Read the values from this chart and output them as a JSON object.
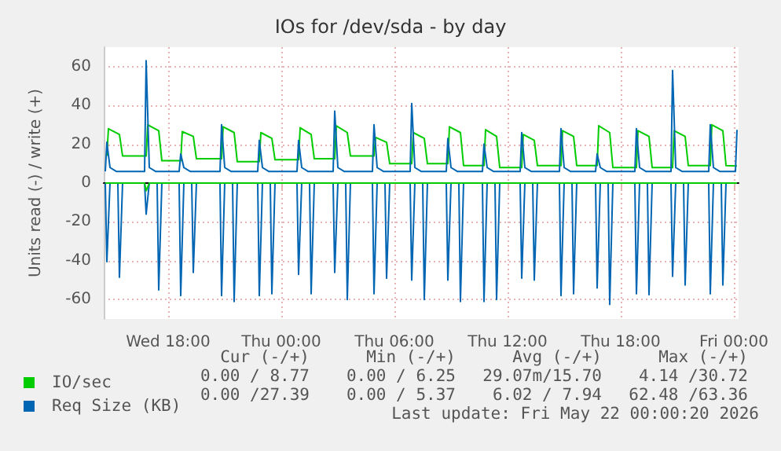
{
  "chart_data": {
    "type": "line",
    "title": "IOs for /dev/sda - by day",
    "ylabel": "Units read (-) / write (+)",
    "xlim": [
      "2026-05-20T14:35",
      "2026-05-22T00:15"
    ],
    "xticks": [
      {
        "value": "2026-05-20T18:00",
        "label": "Wed 18:00"
      },
      {
        "value": "2026-05-21T00:00",
        "label": "Thu 00:00"
      },
      {
        "value": "2026-05-21T06:00",
        "label": "Thu 06:00"
      },
      {
        "value": "2026-05-21T12:00",
        "label": "Thu 12:00"
      },
      {
        "value": "2026-05-21T18:00",
        "label": "Thu 18:00"
      },
      {
        "value": "2026-05-22T00:00",
        "label": "Fri 00:00"
      }
    ],
    "ylim": [
      -70,
      70
    ],
    "yticks": [
      -60,
      -40,
      -20,
      0,
      20,
      40,
      60
    ],
    "grid": true,
    "legend": "bottom left",
    "annotations": [
      "Cur (-/+)",
      "Min (-/+)",
      "Avg (-/+)",
      "Max (-/+)",
      "0.00 / 8.77",
      "0.00 / 6.25",
      "29.07m/15.70",
      "4.14 /30.72",
      "0.00 /27.39",
      "0.00 / 5.37",
      "6.02 / 7.94",
      "62.48 /63.36",
      "Last update: Fri May 22 00:00:20 2026"
    ],
    "series": [
      {
        "name": "IO/sec",
        "color": "#00cc00",
        "x": [
          "2026-05-20T14:45",
          "2026-05-20T14:50",
          "2026-05-20T15:25",
          "2026-05-20T15:35",
          "2026-05-20T16:50",
          "2026-05-20T16:55",
          "2026-05-20T17:30",
          "2026-05-20T17:40",
          "2026-05-20T18:40",
          "2026-05-20T18:45",
          "2026-05-20T19:20",
          "2026-05-20T19:30",
          "2026-05-20T20:50",
          "2026-05-20T20:55",
          "2026-05-20T21:30",
          "2026-05-20T21:40",
          "2026-05-20T22:50",
          "2026-05-20T22:55",
          "2026-05-20T23:30",
          "2026-05-20T23:40",
          "2026-05-21T00:55",
          "2026-05-21T01:00",
          "2026-05-21T01:35",
          "2026-05-21T01:45",
          "2026-05-21T02:50",
          "2026-05-21T02:55",
          "2026-05-21T03:30",
          "2026-05-21T03:40",
          "2026-05-21T04:55",
          "2026-05-21T05:00",
          "2026-05-21T05:35",
          "2026-05-21T05:45",
          "2026-05-21T06:55",
          "2026-05-21T07:00",
          "2026-05-21T07:35",
          "2026-05-21T07:45",
          "2026-05-21T08:50",
          "2026-05-21T08:55",
          "2026-05-21T09:30",
          "2026-05-21T09:40",
          "2026-05-21T10:45",
          "2026-05-21T10:50",
          "2026-05-21T11:25",
          "2026-05-21T11:35",
          "2026-05-21T12:45",
          "2026-05-21T12:50",
          "2026-05-21T13:25",
          "2026-05-21T13:35",
          "2026-05-21T14:50",
          "2026-05-21T14:55",
          "2026-05-21T15:30",
          "2026-05-21T15:40",
          "2026-05-21T16:45",
          "2026-05-21T16:50",
          "2026-05-21T17:25",
          "2026-05-21T17:35",
          "2026-05-21T18:50",
          "2026-05-21T18:55",
          "2026-05-21T19:30",
          "2026-05-21T19:40",
          "2026-05-21T20:45",
          "2026-05-21T20:50",
          "2026-05-21T21:25",
          "2026-05-21T21:35",
          "2026-05-21T22:45",
          "2026-05-21T22:50",
          "2026-05-21T23:25",
          "2026-05-21T23:35",
          "2026-05-22T00:10"
        ],
        "values": [
          14,
          28,
          25,
          14,
          14,
          30,
          27,
          11.5,
          11.5,
          26.5,
          24,
          12.5,
          12.5,
          29,
          26,
          11,
          11,
          26,
          23,
          12,
          12,
          28.5,
          25,
          12.5,
          12.5,
          29.5,
          26,
          14,
          14,
          23.5,
          21,
          10,
          10,
          26,
          23,
          10,
          10,
          29,
          26,
          9,
          9,
          27.5,
          24,
          8,
          8,
          25,
          22,
          9,
          9,
          27,
          24,
          9,
          9,
          29.5,
          26,
          8,
          8,
          27,
          24,
          8,
          8,
          27,
          24,
          9,
          9,
          30,
          27,
          9,
          8.77
        ]
      },
      {
        "name": "Req Size (KB)",
        "color": "#0066b3",
        "x": [
          "2026-05-20T14:40",
          "2026-05-20T14:45",
          "2026-05-20T14:55",
          "2026-05-20T15:15",
          "2026-05-20T16:45",
          "2026-05-20T16:50",
          "2026-05-20T17:00",
          "2026-05-20T17:20",
          "2026-05-20T18:35",
          "2026-05-20T18:40",
          "2026-05-20T18:50",
          "2026-05-20T19:10",
          "2026-05-20T20:45",
          "2026-05-20T20:50",
          "2026-05-20T21:00",
          "2026-05-20T21:20",
          "2026-05-20T22:45",
          "2026-05-20T22:50",
          "2026-05-20T23:00",
          "2026-05-20T23:20",
          "2026-05-21T00:50",
          "2026-05-21T00:55",
          "2026-05-21T01:05",
          "2026-05-21T01:25",
          "2026-05-21T02:45",
          "2026-05-21T02:50",
          "2026-05-21T03:00",
          "2026-05-21T03:20",
          "2026-05-21T04:50",
          "2026-05-21T04:55",
          "2026-05-21T05:05",
          "2026-05-21T05:25",
          "2026-05-21T06:50",
          "2026-05-21T06:55",
          "2026-05-21T07:05",
          "2026-05-21T07:25",
          "2026-05-21T08:45",
          "2026-05-21T08:50",
          "2026-05-21T09:00",
          "2026-05-21T09:20",
          "2026-05-21T10:40",
          "2026-05-21T10:45",
          "2026-05-21T10:55",
          "2026-05-21T11:15",
          "2026-05-21T12:40",
          "2026-05-21T12:45",
          "2026-05-21T12:55",
          "2026-05-21T13:15",
          "2026-05-21T14:45",
          "2026-05-21T14:50",
          "2026-05-21T15:00",
          "2026-05-21T15:20",
          "2026-05-21T16:40",
          "2026-05-21T16:45",
          "2026-05-21T16:55",
          "2026-05-21T17:15",
          "2026-05-21T18:45",
          "2026-05-21T18:50",
          "2026-05-21T19:00",
          "2026-05-21T19:20",
          "2026-05-21T20:40",
          "2026-05-21T20:45",
          "2026-05-21T20:55",
          "2026-05-21T21:15",
          "2026-05-21T22:40",
          "2026-05-21T22:45",
          "2026-05-21T22:55",
          "2026-05-21T23:15",
          "2026-05-22T00:05",
          "2026-05-22T00:10"
        ],
        "values": [
          6,
          21,
          8,
          6,
          6,
          63,
          8,
          6,
          6,
          15,
          8,
          6,
          6,
          30,
          8,
          6,
          6,
          22,
          8,
          6,
          6,
          22,
          8,
          6,
          6,
          37,
          8,
          6,
          6,
          30,
          8,
          6,
          6,
          41,
          8,
          6,
          6,
          23,
          8,
          6,
          6,
          20,
          8,
          6,
          6,
          26,
          8,
          6,
          6,
          28,
          8,
          6,
          6,
          15,
          8,
          6,
          6,
          28,
          8,
          6,
          6,
          58,
          8,
          6,
          6,
          30,
          8,
          6,
          6,
          27.39
        ]
      },
      {
        "color": "#0066b3",
        "x": [
          "2026-05-20T14:40",
          "2026-05-20T14:45",
          "2026-05-20T14:55",
          "2026-05-20T15:20",
          "2026-05-20T15:25",
          "2026-05-20T15:35",
          "2026-05-20T16:45",
          "2026-05-20T16:50",
          "2026-05-20T17:00",
          "2026-05-20T17:25",
          "2026-05-20T17:30",
          "2026-05-20T17:40",
          "2026-05-20T18:35",
          "2026-05-20T18:40",
          "2026-05-20T18:50",
          "2026-05-20T19:15",
          "2026-05-20T19:20",
          "2026-05-20T19:30",
          "2026-05-20T20:45",
          "2026-05-20T20:50",
          "2026-05-20T21:00",
          "2026-05-20T21:25",
          "2026-05-20T21:30",
          "2026-05-20T21:40",
          "2026-05-20T22:45",
          "2026-05-20T22:50",
          "2026-05-20T23:00",
          "2026-05-20T23:25",
          "2026-05-20T23:30",
          "2026-05-20T23:40",
          "2026-05-21T00:50",
          "2026-05-21T00:55",
          "2026-05-21T01:05",
          "2026-05-21T01:30",
          "2026-05-21T01:35",
          "2026-05-21T01:45",
          "2026-05-21T02:45",
          "2026-05-21T02:50",
          "2026-05-21T03:00",
          "2026-05-21T03:25",
          "2026-05-21T03:30",
          "2026-05-21T03:40",
          "2026-05-21T04:50",
          "2026-05-21T04:55",
          "2026-05-21T05:05",
          "2026-05-21T05:30",
          "2026-05-21T05:35",
          "2026-05-21T05:45",
          "2026-05-21T06:50",
          "2026-05-21T06:55",
          "2026-05-21T07:05",
          "2026-05-21T07:30",
          "2026-05-21T07:35",
          "2026-05-21T07:45",
          "2026-05-21T08:45",
          "2026-05-21T08:50",
          "2026-05-21T09:00",
          "2026-05-21T09:25",
          "2026-05-21T09:30",
          "2026-05-21T09:40",
          "2026-05-21T10:40",
          "2026-05-21T10:45",
          "2026-05-21T10:55",
          "2026-05-21T11:20",
          "2026-05-21T11:25",
          "2026-05-21T11:35",
          "2026-05-21T12:40",
          "2026-05-21T12:45",
          "2026-05-21T12:55",
          "2026-05-21T13:20",
          "2026-05-21T13:25",
          "2026-05-21T13:35",
          "2026-05-21T14:45",
          "2026-05-21T14:50",
          "2026-05-21T15:00",
          "2026-05-21T15:25",
          "2026-05-21T15:30",
          "2026-05-21T15:40",
          "2026-05-21T16:40",
          "2026-05-21T16:45",
          "2026-05-21T16:55",
          "2026-05-21T17:20",
          "2026-05-21T17:25",
          "2026-05-21T17:35",
          "2026-05-21T18:45",
          "2026-05-21T18:50",
          "2026-05-21T19:00",
          "2026-05-21T19:25",
          "2026-05-21T19:30",
          "2026-05-21T19:40",
          "2026-05-21T20:40",
          "2026-05-21T20:45",
          "2026-05-21T20:55",
          "2026-05-21T21:20",
          "2026-05-21T21:25",
          "2026-05-21T21:35",
          "2026-05-21T22:40",
          "2026-05-21T22:45",
          "2026-05-21T22:55",
          "2026-05-21T23:20",
          "2026-05-21T23:25",
          "2026-05-21T23:35",
          "2026-05-22T00:10"
        ],
        "values": [
          0,
          -40.5,
          0,
          0,
          -48.5,
          0,
          0,
          -16,
          0,
          0,
          -55,
          0,
          0,
          -58,
          0,
          0,
          -46,
          0,
          0,
          -58,
          0,
          0,
          -61,
          0,
          0,
          -58,
          0,
          0,
          -57,
          0,
          0,
          -47,
          0,
          0,
          -57,
          0,
          0,
          -46,
          0,
          0,
          -60,
          0,
          0,
          -57,
          0,
          0,
          -49,
          0,
          0,
          -50,
          0,
          0,
          -60,
          0,
          0,
          -50,
          0,
          0,
          -61,
          0,
          0,
          -61,
          0,
          0,
          -60,
          0,
          0,
          -49,
          0,
          0,
          -50,
          0,
          0,
          -58,
          0,
          0,
          -57,
          0,
          0,
          -54,
          0,
          0,
          -62.5,
          0,
          0,
          -57,
          0,
          0,
          -57.5,
          0,
          0,
          -48,
          0,
          0,
          -52.5,
          0,
          0,
          -57,
          0,
          0,
          -52.5,
          0,
          0
        ]
      },
      {
        "color": "#00cc00",
        "x": [
          "2026-05-20T14:40",
          "2026-05-20T16:45",
          "2026-05-20T16:50",
          "2026-05-20T17:00",
          "2026-05-22T00:10"
        ],
        "values": [
          0,
          0,
          -4,
          0,
          0
        ]
      }
    ]
  }
}
